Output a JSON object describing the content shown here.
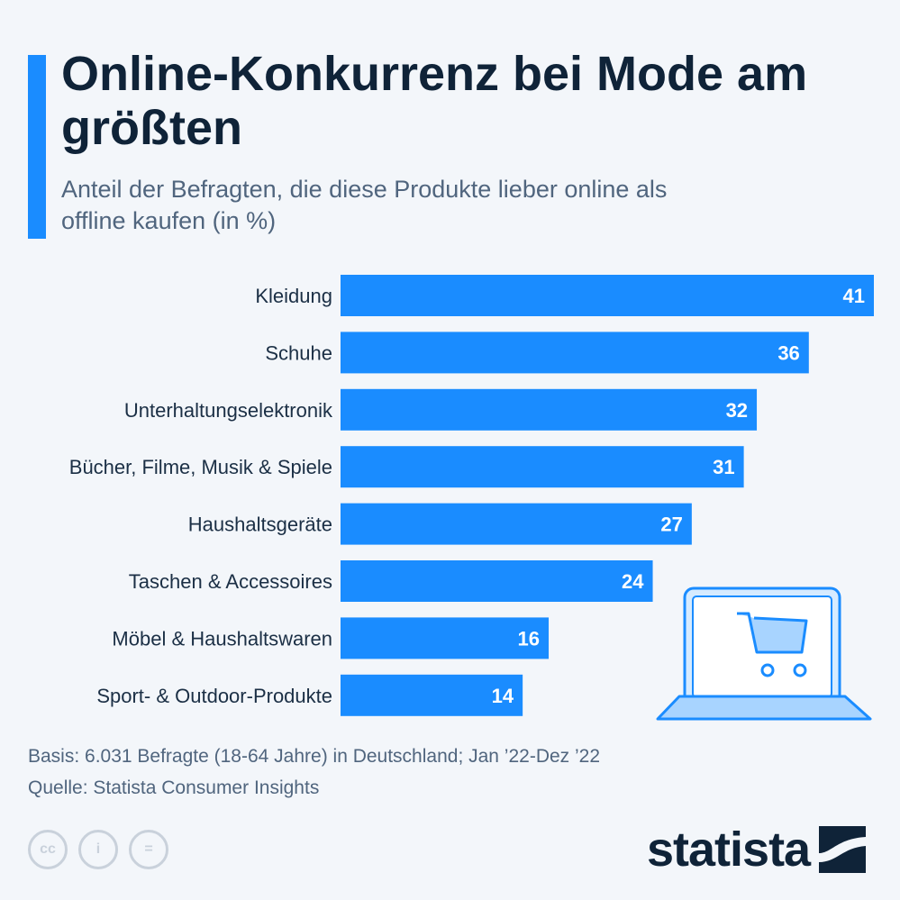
{
  "header": {
    "title": "Online-Konkurrenz bei Mode am größten",
    "subtitle": "Anteil der Befragten, die diese Produkte lieber online als offline kaufen (in %)"
  },
  "colors": {
    "accent": "#1a8cff",
    "title": "#0f2338",
    "muted": "#50657e",
    "background": "#f3f6fa"
  },
  "chart_data": {
    "type": "bar",
    "orientation": "horizontal",
    "categories": [
      "Kleidung",
      "Schuhe",
      "Unterhaltungselektronik",
      "Bücher, Filme, Musik & Spiele",
      "Haushaltsgeräte",
      "Taschen & Accessoires",
      "Möbel & Haushaltswaren",
      "Sport- & Outdoor-Produkte"
    ],
    "values": [
      41,
      36,
      32,
      31,
      27,
      24,
      16,
      14
    ],
    "value_labels": [
      "41",
      "36",
      "32",
      "31",
      "27",
      "24",
      "16",
      "14"
    ],
    "xlim": [
      0,
      41
    ],
    "grid": false,
    "legend": "none",
    "bar_color": "#1a8cff"
  },
  "illustration": {
    "icon": "laptop-shopping-cart-icon"
  },
  "footer": {
    "basis": "Basis: 6.031 Befragte (18-64 Jahre) in Deutschland; Jan ’22-Dez ’22",
    "source": "Quelle: Statista Consumer Insights",
    "license_icons": [
      "cc-icon",
      "by-attribution-icon",
      "no-derivatives-icon"
    ],
    "license_glyphs": [
      "cc",
      "i",
      "="
    ],
    "brand": "statista"
  }
}
